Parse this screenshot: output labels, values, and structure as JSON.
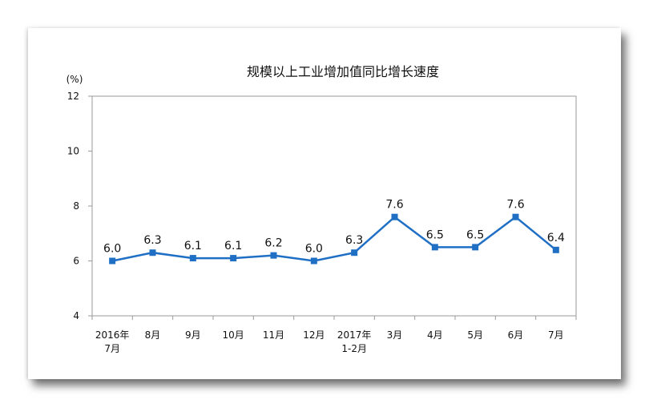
{
  "chart_data": {
    "type": "line",
    "title": "规模以上工业增加值同比增长速度",
    "ylabel": "(%)",
    "xlabel": "",
    "ylim": [
      4,
      12
    ],
    "yticks": [
      4,
      6,
      8,
      10,
      12
    ],
    "grid": false,
    "categories": [
      [
        "2016年",
        "7月"
      ],
      [
        "8月"
      ],
      [
        "9月"
      ],
      [
        "10月"
      ],
      [
        "11月"
      ],
      [
        "12月"
      ],
      [
        "2017年",
        "1-2月"
      ],
      [
        "3月"
      ],
      [
        "4月"
      ],
      [
        "5月"
      ],
      [
        "6月"
      ],
      [
        "7月"
      ]
    ],
    "values": [
      6.0,
      6.3,
      6.1,
      6.1,
      6.2,
      6.0,
      6.3,
      7.6,
      6.5,
      6.5,
      7.6,
      6.4
    ],
    "value_labels": [
      "6.0",
      "6.3",
      "6.1",
      "6.1",
      "6.2",
      "6.0",
      "6.3",
      "7.6",
      "6.5",
      "6.5",
      "7.6",
      "6.4"
    ],
    "line_color": "#1f6fc5"
  }
}
